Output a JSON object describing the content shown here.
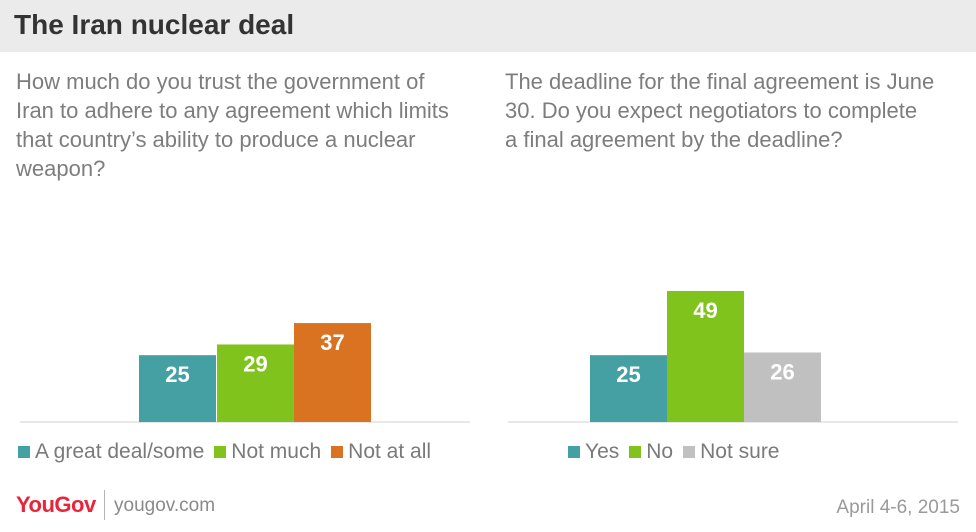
{
  "header": {
    "title": "The Iran nuclear deal"
  },
  "colors": {
    "teal": "#45a0a4",
    "green": "#7fc31c",
    "orange": "#d97221",
    "gray": "#c0c0c0",
    "header_bg": "#ebebeb",
    "brand_red": "#e7263b"
  },
  "chart_data": [
    {
      "type": "bar",
      "title": "How much do you trust the government of Iran to adhere to any agreement which limits that country’s ability to produce a nuclear weapon?",
      "categories": [
        "A great deal/some",
        "Not much",
        "Not at all"
      ],
      "values": [
        25,
        29,
        37
      ],
      "colors": [
        "#45a0a4",
        "#7fc31c",
        "#d97221"
      ],
      "legend_position": "bottom",
      "grid": false
    },
    {
      "type": "bar",
      "title": "The deadline for the final agreement is June 30. Do you expect negotiators to complete a final agreement by the deadline?",
      "categories": [
        "Yes",
        "No",
        "Not sure"
      ],
      "values": [
        25,
        49,
        26
      ],
      "colors": [
        "#45a0a4",
        "#7fc31c",
        "#c0c0c0"
      ],
      "legend_position": "bottom",
      "grid": false
    }
  ],
  "footer": {
    "brand": "YouGov",
    "site": "yougov.com",
    "date": "April 4-6, 2015"
  }
}
